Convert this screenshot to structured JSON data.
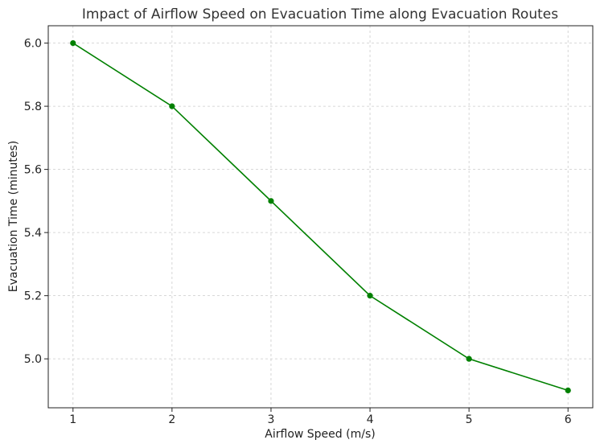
{
  "chart_data": {
    "type": "line",
    "title": "Impact of Airflow Speed on Evacuation Time along Evacuation Routes",
    "xlabel": "Airflow Speed (m/s)",
    "ylabel": "Evacuation Time (minutes)",
    "x": [
      1,
      2,
      3,
      4,
      5,
      6
    ],
    "x_tick_labels": [
      "1",
      "2",
      "3",
      "4",
      "5",
      "6"
    ],
    "y_ticks": [
      5.0,
      5.2,
      5.4,
      5.6,
      5.8,
      6.0
    ],
    "y_tick_labels": [
      "5.0",
      "5.2",
      "5.4",
      "5.6",
      "5.8",
      "6.0"
    ],
    "xlim": [
      0.75,
      6.25
    ],
    "ylim": [
      4.845,
      6.055
    ],
    "grid": true,
    "marker": "circle",
    "series": [
      {
        "name": "Evacuation Time",
        "values": [
          6.0,
          5.8,
          5.5,
          5.2,
          5.0,
          4.9
        ],
        "color": "#008000"
      }
    ]
  }
}
